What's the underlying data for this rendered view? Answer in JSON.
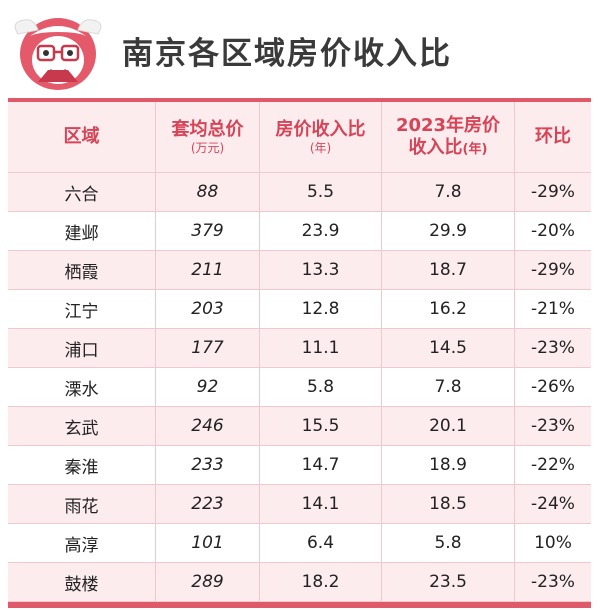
{
  "title": "南京各区域房价收入比",
  "colors": {
    "accent": "#e0596b",
    "header_text": "#d64457",
    "stripe": "#fcecee"
  },
  "table": {
    "headers": {
      "district": "区域",
      "avg_price": "套均总价",
      "avg_price_unit": "(万元)",
      "ratio": "房价收入比",
      "ratio_unit": "(年)",
      "ratio_2023_line1": "2023年房价",
      "ratio_2023_line2": "收入比",
      "ratio_2023_unit": "(年)",
      "change": "环比"
    },
    "rows": [
      {
        "district": "六合",
        "avg_price": "88",
        "ratio": "5.5",
        "ratio_2023": "7.8",
        "change": "-29%"
      },
      {
        "district": "建邺",
        "avg_price": "379",
        "ratio": "23.9",
        "ratio_2023": "29.9",
        "change": "-20%"
      },
      {
        "district": "栖霞",
        "avg_price": "211",
        "ratio": "13.3",
        "ratio_2023": "18.7",
        "change": "-29%"
      },
      {
        "district": "江宁",
        "avg_price": "203",
        "ratio": "12.8",
        "ratio_2023": "16.2",
        "change": "-21%"
      },
      {
        "district": "浦口",
        "avg_price": "177",
        "ratio": "11.1",
        "ratio_2023": "14.5",
        "change": "-23%"
      },
      {
        "district": "溧水",
        "avg_price": "92",
        "ratio": "5.8",
        "ratio_2023": "7.8",
        "change": "-26%"
      },
      {
        "district": "玄武",
        "avg_price": "246",
        "ratio": "15.5",
        "ratio_2023": "20.1",
        "change": "-23%"
      },
      {
        "district": "秦淮",
        "avg_price": "233",
        "ratio": "14.7",
        "ratio_2023": "18.9",
        "change": "-22%"
      },
      {
        "district": "雨花",
        "avg_price": "223",
        "ratio": "14.1",
        "ratio_2023": "18.5",
        "change": "-24%"
      },
      {
        "district": "高淳",
        "avg_price": "101",
        "ratio": "6.4",
        "ratio_2023": "5.8",
        "change": "10%"
      },
      {
        "district": "鼓楼",
        "avg_price": "289",
        "ratio": "18.2",
        "ratio_2023": "23.5",
        "change": "-23%"
      }
    ]
  }
}
